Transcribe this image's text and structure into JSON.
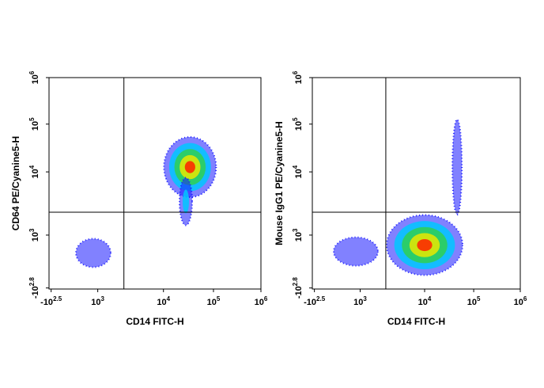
{
  "chart_data": [
    {
      "type": "density",
      "x_label": "CD14 FITC-H",
      "y_label": "CD64 PE/Cyanine5-H",
      "xlim": [
        -400,
        1000000
      ],
      "ylim": [
        -700,
        1000000
      ],
      "xticks": [
        {
          "value": -316,
          "label": "-10",
          "exp": "2.5"
        },
        {
          "value": 1000,
          "label": "10",
          "exp": "3"
        },
        {
          "value": 10000,
          "label": "10",
          "exp": "4"
        },
        {
          "value": 100000,
          "label": "10",
          "exp": "5"
        },
        {
          "value": 1000000,
          "label": "10",
          "exp": "6"
        }
      ],
      "yticks": [
        {
          "value": -631,
          "label": "-10",
          "exp": "2.8"
        },
        {
          "value": 1000,
          "label": "10",
          "exp": "3"
        },
        {
          "value": 10000,
          "label": "10",
          "exp": "4"
        },
        {
          "value": 100000,
          "label": "10",
          "exp": "5"
        },
        {
          "value": 1000000,
          "label": "10",
          "exp": "6"
        }
      ],
      "gates": {
        "x": 2500,
        "y": 2300
      },
      "clusters": [
        {
          "x": 34000,
          "y": 12600
        },
        {
          "x": 28000,
          "y": 3400
        },
        {
          "x": 300,
          "y": 11
        }
      ]
    },
    {
      "type": "density",
      "x_label": "CD14 FITC-H",
      "y_label": "Mouse IgG1 PE/Cyanine5-H",
      "xlim": [
        -400,
        1000000
      ],
      "ylim": [
        -700,
        1000000
      ],
      "xticks": [
        {
          "value": -316,
          "label": "-10",
          "exp": "2.5"
        },
        {
          "value": 1000,
          "label": "10",
          "exp": "3"
        },
        {
          "value": 10000,
          "label": "10",
          "exp": "4"
        },
        {
          "value": 100000,
          "label": "10",
          "exp": "5"
        },
        {
          "value": 1000000,
          "label": "10",
          "exp": "6"
        }
      ],
      "yticks": [
        {
          "value": -631,
          "label": "-10",
          "exp": "2.8"
        },
        {
          "value": 1000,
          "label": "10",
          "exp": "3"
        },
        {
          "value": 10000,
          "label": "10",
          "exp": "4"
        },
        {
          "value": 100000,
          "label": "10",
          "exp": "5"
        },
        {
          "value": 1000000,
          "label": "10",
          "exp": "6"
        }
      ],
      "gates": {
        "x": 2500,
        "y": 2300
      },
      "clusters": [
        {
          "x": 10000,
          "y": 80
        },
        {
          "x": 300,
          "y": 16
        },
        {
          "x": 46000,
          "y": 12600
        }
      ]
    }
  ]
}
